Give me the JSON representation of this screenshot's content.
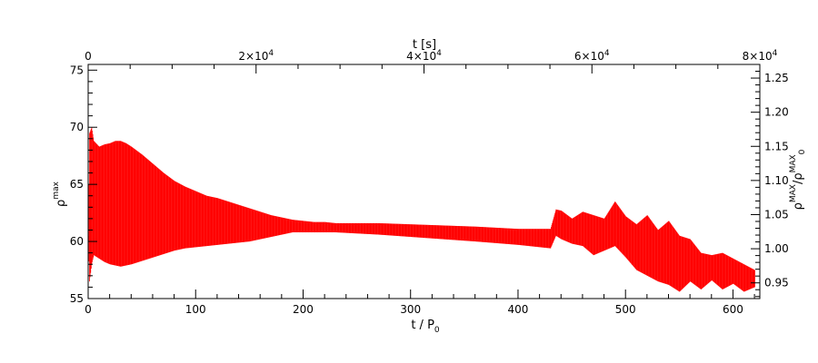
{
  "chart_data": {
    "type": "area",
    "series_color": "#ff0000",
    "grid": false,
    "bottom_axis": {
      "label_main": "t / P",
      "label_sub": "0",
      "range": [
        0,
        625
      ],
      "ticks": [
        0,
        100,
        200,
        300,
        400,
        500,
        600
      ],
      "tick_labels": [
        "0",
        "100",
        "200",
        "300",
        "400",
        "500",
        "600"
      ]
    },
    "top_axis": {
      "label": "t [s]",
      "range": [
        0,
        80000
      ],
      "ticks": [
        0,
        20000,
        40000,
        60000,
        80000
      ],
      "tick_labels": [
        {
          "base": "0",
          "exp": ""
        },
        {
          "base": "2×10",
          "exp": "4"
        },
        {
          "base": "4×10",
          "exp": "4"
        },
        {
          "base": "6×10",
          "exp": "4"
        },
        {
          "base": "8×10",
          "exp": "4"
        }
      ]
    },
    "left_axis": {
      "label_main": "ρ",
      "label_sup": "max",
      "range": [
        55,
        75.5
      ],
      "ticks": [
        55,
        60,
        65,
        70,
        75
      ],
      "tick_labels": [
        "55",
        "60",
        "65",
        "70",
        "75"
      ]
    },
    "right_axis": {
      "label_parts": [
        "ρ",
        "MAX",
        "/ρ",
        "MAX",
        "0"
      ],
      "range": [
        0.927,
        1.27
      ],
      "ticks": [
        0.95,
        1.0,
        1.05,
        1.1,
        1.15,
        1.2,
        1.25
      ],
      "tick_labels": [
        "0.95",
        "1.00",
        "1.05",
        "1.10",
        "1.15",
        "1.20",
        "1.25"
      ]
    },
    "envelope": {
      "x": [
        0,
        1,
        3,
        5,
        10,
        15,
        20,
        25,
        30,
        35,
        40,
        50,
        60,
        70,
        80,
        90,
        100,
        110,
        120,
        130,
        140,
        150,
        160,
        170,
        180,
        190,
        200,
        210,
        220,
        230,
        250,
        270,
        300,
        330,
        360,
        400,
        430,
        435,
        440,
        450,
        460,
        470,
        480,
        490,
        500,
        510,
        520,
        530,
        540,
        550,
        560,
        570,
        580,
        590,
        600,
        610,
        620
      ],
      "upper": [
        60.5,
        69.5,
        70.0,
        68.8,
        68.3,
        68.5,
        68.6,
        68.8,
        68.8,
        68.6,
        68.3,
        67.6,
        66.8,
        66.0,
        65.3,
        64.8,
        64.4,
        64.0,
        63.8,
        63.5,
        63.2,
        62.9,
        62.6,
        62.3,
        62.1,
        61.9,
        61.8,
        61.7,
        61.7,
        61.6,
        61.6,
        61.6,
        61.5,
        61.4,
        61.3,
        61.1,
        61.1,
        62.8,
        62.7,
        62.0,
        62.6,
        62.3,
        62.0,
        63.5,
        62.2,
        61.5,
        62.3,
        61.0,
        61.8,
        60.5,
        60.2,
        59.0,
        58.8,
        59.0,
        58.5,
        58.0,
        57.5
      ],
      "lower": [
        60.0,
        56.5,
        58.0,
        58.8,
        58.5,
        58.2,
        58.0,
        57.9,
        57.8,
        57.9,
        58.0,
        58.3,
        58.6,
        58.9,
        59.2,
        59.4,
        59.5,
        59.6,
        59.7,
        59.8,
        59.9,
        60.0,
        60.2,
        60.4,
        60.6,
        60.8,
        60.8,
        60.8,
        60.8,
        60.8,
        60.7,
        60.6,
        60.4,
        60.2,
        60.0,
        59.7,
        59.4,
        60.5,
        60.2,
        59.8,
        59.6,
        58.8,
        59.2,
        59.6,
        58.6,
        57.5,
        57.0,
        56.5,
        56.2,
        55.6,
        56.5,
        55.8,
        56.6,
        55.8,
        56.3,
        55.6,
        56.0
      ]
    }
  }
}
